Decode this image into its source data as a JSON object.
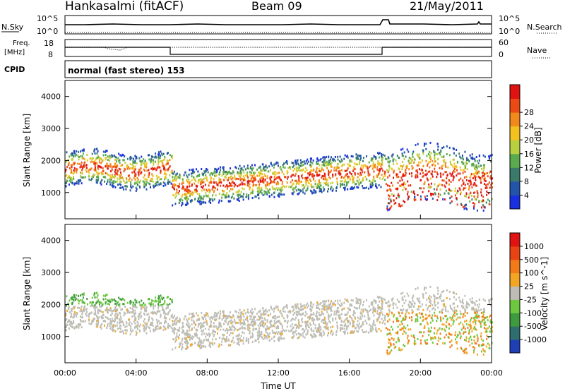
{
  "header": {
    "station": "Hankasalmi (fitACF)",
    "beam": "Beam 09",
    "date": "21/May/2011"
  },
  "strip_panels": {
    "nsky": {
      "label": "N.Sky",
      "tick_top": "10^5",
      "tick_bottom": "10^0"
    },
    "nsearch": {
      "label": "N.Search",
      "tick_top": "10^5",
      "tick_bottom": "10^0"
    },
    "freq": {
      "label_line1": "Freq.",
      "label_line2": "[MHz]",
      "tick_top": "18",
      "tick_bottom": "8"
    },
    "nave": {
      "label": "Nave",
      "tick_top": "60",
      "tick_bottom": "0"
    },
    "cpid": {
      "label": "CPID",
      "text": "normal (fast stereo) 153"
    }
  },
  "chart_data": [
    {
      "type": "heatmap",
      "title": "",
      "xlabel": "",
      "ylabel": "Slant Range [km]",
      "xlim_hours": [
        0,
        24
      ],
      "ylim_km": [
        180,
        4500
      ],
      "y_ticks": [
        "1000",
        "2000",
        "3000",
        "4000"
      ],
      "colorbar": {
        "label": "Power [dB]",
        "ticks": [
          "4",
          "8",
          "12",
          "16",
          "20",
          "24",
          "28"
        ],
        "colors": [
          "#1a2fe0",
          "#2255a8",
          "#3b7a6a",
          "#5aaa4e",
          "#b8d040",
          "#f3c21f",
          "#f28a1b",
          "#ec4a14",
          "#e01212"
        ]
      }
    },
    {
      "type": "heatmap",
      "title": "",
      "xlabel": "Time UT",
      "ylabel": "Slant Range [km]",
      "xlim_hours": [
        0,
        24
      ],
      "ylim_km": [
        180,
        4500
      ],
      "y_ticks": [
        "1000",
        "2000",
        "3000",
        "4000"
      ],
      "x_ticks": [
        "00:00",
        "04:00",
        "08:00",
        "12:00",
        "16:00",
        "20:00",
        "00:00"
      ],
      "colorbar": {
        "label": "Velocity [m s^-1]",
        "ticks": [
          "1000",
          "500",
          "100",
          "25",
          "-25",
          "-100",
          "-500",
          "-1000"
        ],
        "colors": [
          "#1f3fb4",
          "#2e6e6e",
          "#3d9a3d",
          "#6dc840",
          "#bdbdb5",
          "#f2a623",
          "#f27a18",
          "#e84413",
          "#e01212"
        ]
      }
    }
  ]
}
